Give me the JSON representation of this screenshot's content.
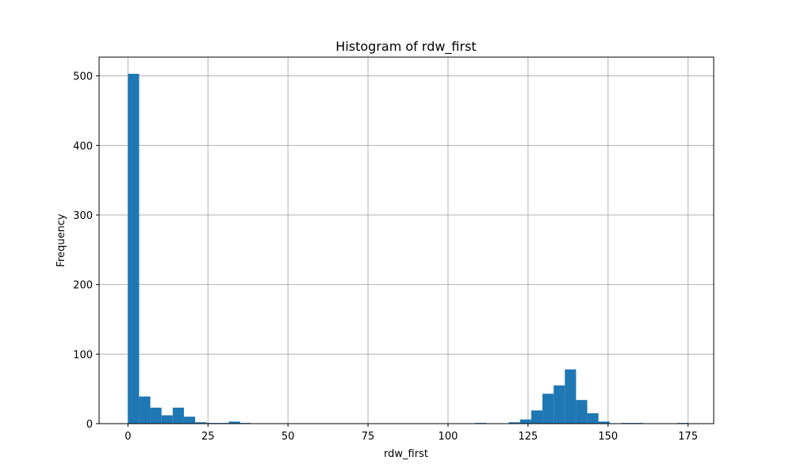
{
  "chart_data": {
    "type": "bar",
    "title": "Histogram of rdw_first",
    "xlabel": "rdw_first",
    "ylabel": "Frequency",
    "xlim": [
      -9,
      183
    ],
    "ylim": [
      0,
      527
    ],
    "grid": true,
    "bar_color": "#1f77b4",
    "grid_color": "#b0b0b0",
    "x_ticks": [
      {
        "value": 0,
        "label": "0"
      },
      {
        "value": 25,
        "label": "25"
      },
      {
        "value": 50,
        "label": "50"
      },
      {
        "value": 75,
        "label": "75"
      },
      {
        "value": 100,
        "label": "100"
      },
      {
        "value": 125,
        "label": "125"
      },
      {
        "value": 150,
        "label": "150"
      },
      {
        "value": 175,
        "label": "175"
      }
    ],
    "y_ticks": [
      {
        "value": 0,
        "label": "0"
      },
      {
        "value": 100,
        "label": "100"
      },
      {
        "value": 200,
        "label": "200"
      },
      {
        "value": 300,
        "label": "300"
      },
      {
        "value": 400,
        "label": "400"
      },
      {
        "value": 500,
        "label": "500"
      }
    ],
    "bins": [
      {
        "x0": 0.0,
        "x1": 3.5,
        "count": 503
      },
      {
        "x0": 3.5,
        "x1": 7.0,
        "count": 39
      },
      {
        "x0": 7.0,
        "x1": 10.5,
        "count": 23
      },
      {
        "x0": 10.5,
        "x1": 14.0,
        "count": 12
      },
      {
        "x0": 14.0,
        "x1": 17.5,
        "count": 23
      },
      {
        "x0": 17.5,
        "x1": 21.0,
        "count": 10
      },
      {
        "x0": 21.0,
        "x1": 24.5,
        "count": 2
      },
      {
        "x0": 24.5,
        "x1": 28.0,
        "count": 1
      },
      {
        "x0": 28.0,
        "x1": 31.5,
        "count": 1
      },
      {
        "x0": 31.5,
        "x1": 35.0,
        "count": 3
      },
      {
        "x0": 35.0,
        "x1": 38.5,
        "count": 1
      },
      {
        "x0": 108.5,
        "x1": 112.0,
        "count": 1
      },
      {
        "x0": 119.0,
        "x1": 122.5,
        "count": 2
      },
      {
        "x0": 122.5,
        "x1": 126.0,
        "count": 6
      },
      {
        "x0": 126.0,
        "x1": 129.5,
        "count": 19
      },
      {
        "x0": 129.5,
        "x1": 133.0,
        "count": 43
      },
      {
        "x0": 133.0,
        "x1": 136.5,
        "count": 55
      },
      {
        "x0": 136.5,
        "x1": 140.0,
        "count": 78
      },
      {
        "x0": 140.0,
        "x1": 143.5,
        "count": 34
      },
      {
        "x0": 143.5,
        "x1": 147.0,
        "count": 15
      },
      {
        "x0": 147.0,
        "x1": 150.5,
        "count": 3
      },
      {
        "x0": 154.0,
        "x1": 157.5,
        "count": 1
      },
      {
        "x0": 157.5,
        "x1": 161.0,
        "count": 1
      },
      {
        "x0": 171.5,
        "x1": 175.0,
        "count": 1
      }
    ]
  }
}
